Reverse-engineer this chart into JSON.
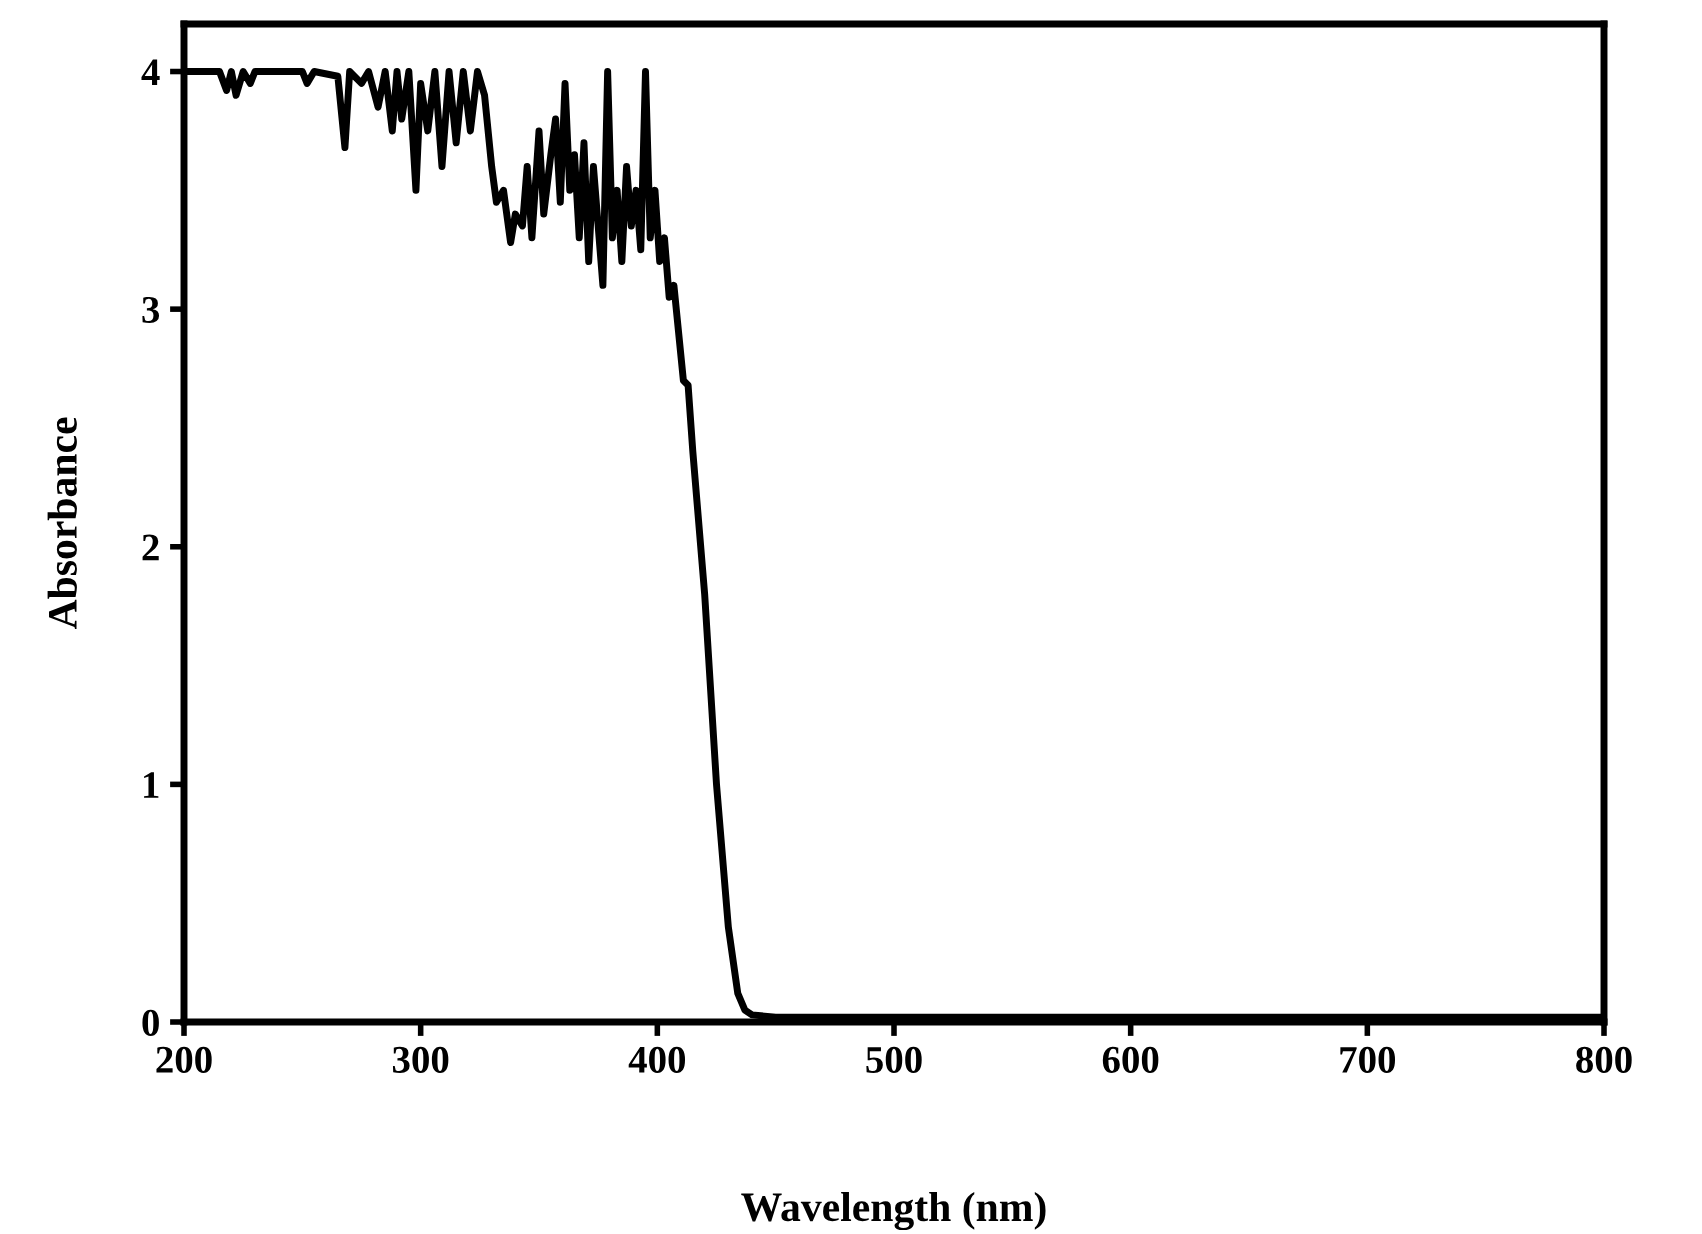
{
  "chart_data": {
    "type": "line",
    "xlabel": "Wavelength (nm)",
    "ylabel": "Absorbance",
    "xlim": [
      200,
      800
    ],
    "xticks": [
      200,
      300,
      400,
      500,
      600,
      700,
      800
    ],
    "ylim": [
      0,
      4.2
    ],
    "yticks": [
      0,
      1,
      2,
      3,
      4
    ],
    "grid": false,
    "legend": false,
    "marker": "none",
    "line_style": "solid",
    "series": [
      {
        "color": "#000000",
        "x": [
          200,
          215,
          218,
          220,
          222,
          225,
          228,
          230,
          250,
          252,
          255,
          265,
          268,
          270,
          275,
          278,
          282,
          285,
          288,
          290,
          292,
          295,
          298,
          300,
          303,
          306,
          309,
          312,
          315,
          318,
          321,
          324,
          327,
          330,
          332,
          335,
          338,
          340,
          343,
          345,
          347,
          350,
          352,
          355,
          357,
          359,
          361,
          363,
          365,
          367,
          369,
          371,
          373,
          375,
          377,
          379,
          381,
          383,
          385,
          387,
          389,
          391,
          393,
          395,
          397,
          399,
          401,
          403,
          405,
          407,
          409,
          411,
          413,
          415,
          420,
          425,
          430,
          434,
          437,
          440,
          450,
          500,
          600,
          700,
          800
        ],
        "values": [
          4.0,
          4.0,
          3.92,
          4.0,
          3.9,
          4.0,
          3.95,
          4.0,
          4.0,
          3.95,
          4.0,
          3.98,
          3.68,
          4.0,
          3.95,
          4.0,
          3.85,
          4.0,
          3.75,
          4.0,
          3.8,
          4.0,
          3.5,
          3.95,
          3.75,
          4.0,
          3.6,
          4.0,
          3.7,
          4.0,
          3.75,
          4.0,
          3.9,
          3.6,
          3.45,
          3.5,
          3.28,
          3.4,
          3.35,
          3.6,
          3.3,
          3.75,
          3.4,
          3.65,
          3.8,
          3.45,
          3.95,
          3.5,
          3.65,
          3.3,
          3.7,
          3.2,
          3.6,
          3.35,
          3.1,
          4.0,
          3.3,
          3.5,
          3.2,
          3.6,
          3.35,
          3.5,
          3.25,
          4.0,
          3.3,
          3.5,
          3.2,
          3.3,
          3.05,
          3.1,
          2.9,
          2.7,
          2.68,
          2.4,
          1.8,
          1.0,
          0.4,
          0.12,
          0.05,
          0.03,
          0.02,
          0.02,
          0.02,
          0.02,
          0.02
        ]
      }
    ]
  }
}
